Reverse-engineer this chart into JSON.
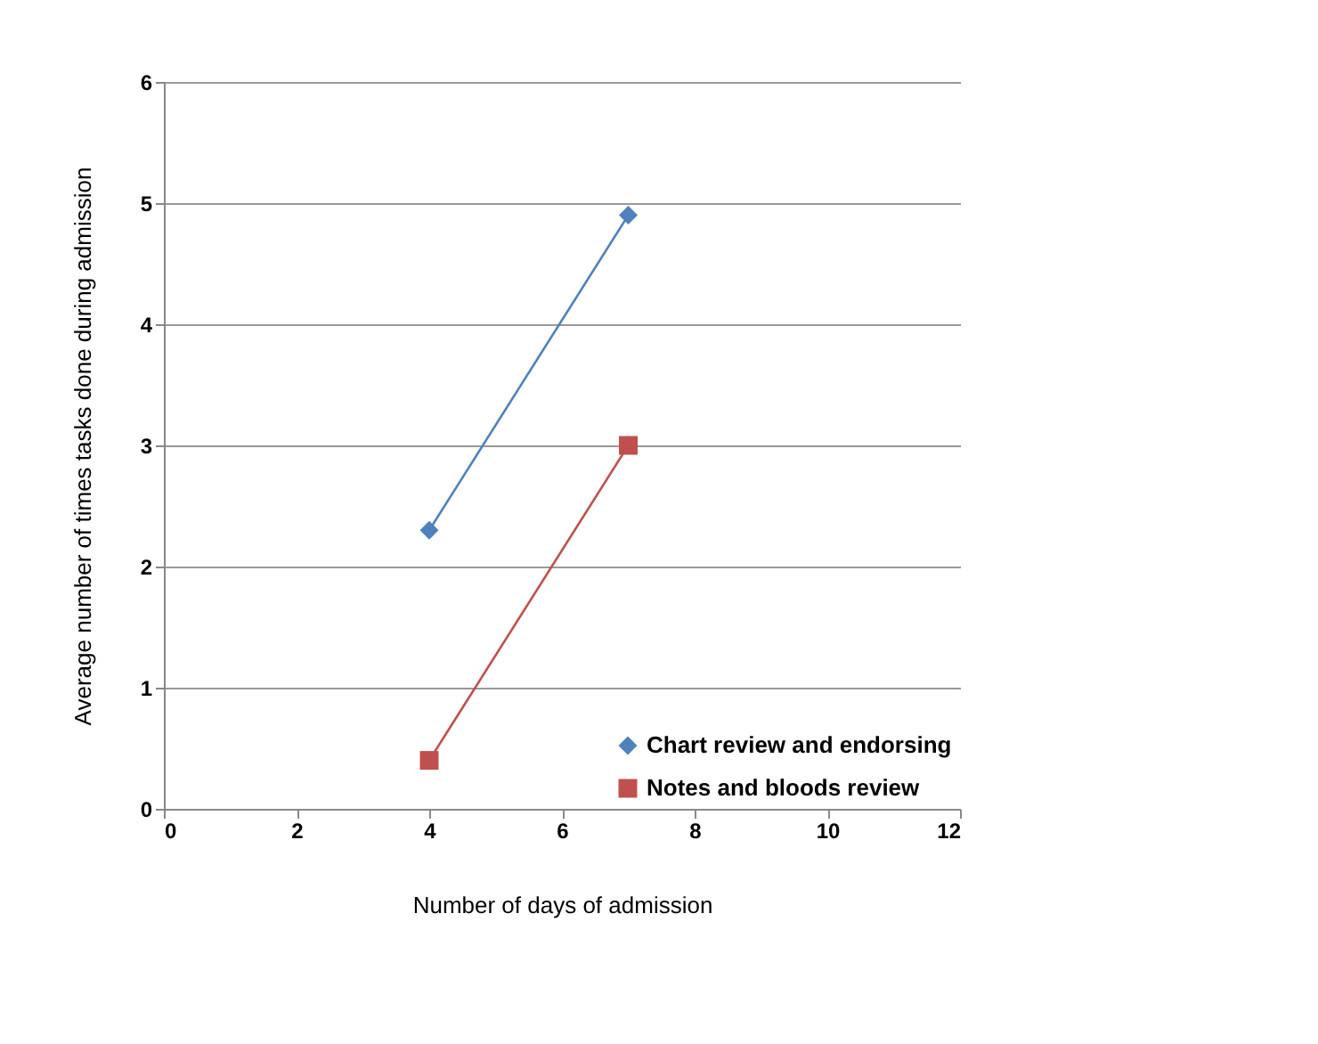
{
  "chart_data": {
    "type": "line",
    "xlabel": "Number of days of admission",
    "ylabel": "Average number of times tasks  done during admission",
    "x": [
      4,
      7
    ],
    "series": [
      {
        "name": "Chart review and endorsing",
        "color": "#4f81bd",
        "marker": "diamond",
        "values": [
          2.3,
          4.9
        ]
      },
      {
        "name": "Notes and bloods review",
        "color": "#c0504d",
        "marker": "square",
        "values": [
          0.4,
          3.0
        ]
      }
    ],
    "xlim": [
      0,
      12
    ],
    "xticks": [
      0,
      2,
      4,
      6,
      8,
      10,
      12
    ],
    "ylim": [
      0,
      6
    ],
    "yticks": [
      0,
      1,
      2,
      3,
      4,
      5,
      6
    ],
    "grid": "y",
    "legend": "bottom right"
  }
}
